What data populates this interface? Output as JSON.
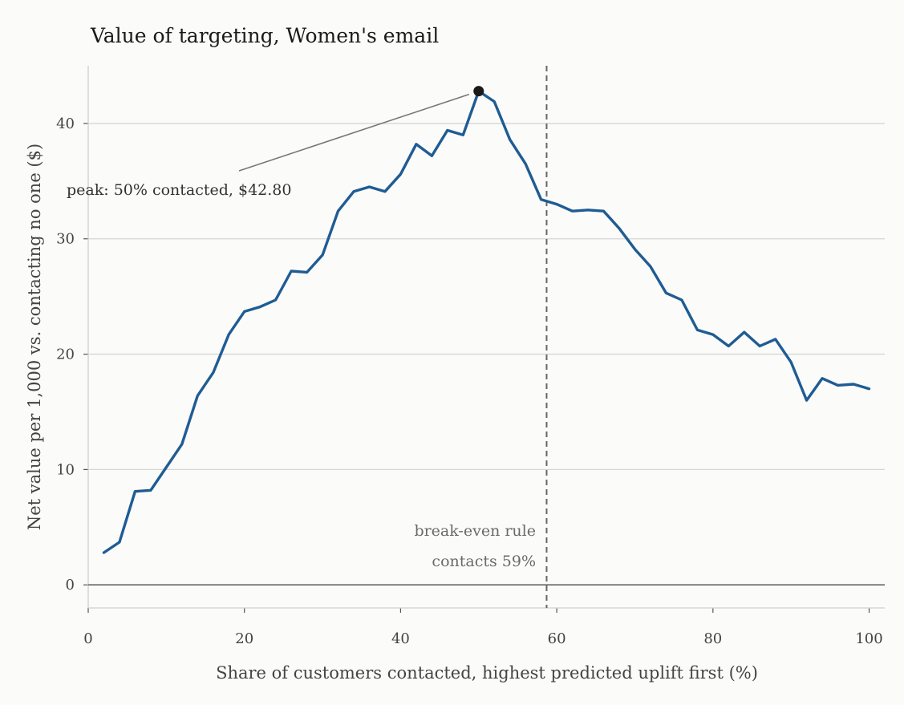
{
  "chart_data": {
    "type": "line",
    "title": "Value of targeting, Women's email",
    "xlabel": "Share of customers contacted, highest predicted uplift first (%)",
    "ylabel": "Net value per 1,000 vs. contacting no one ($)",
    "xlim": [
      0,
      102
    ],
    "ylim": [
      -2,
      45
    ],
    "xticks": [
      0,
      20,
      40,
      60,
      80,
      100
    ],
    "yticks": [
      0,
      10,
      20,
      30,
      40
    ],
    "grid": "horizontal",
    "colors": {
      "line": "#1f5c94",
      "peak": "#1a1a1a",
      "reference": "#666666"
    },
    "series": [
      {
        "x": [
          2,
          4,
          6,
          8,
          10,
          12,
          14,
          16,
          18,
          20,
          22,
          24,
          26,
          28,
          30,
          32,
          34,
          36,
          38,
          40,
          42,
          44,
          46,
          48,
          50,
          52,
          54,
          56,
          58,
          60,
          62,
          64,
          66,
          68,
          70,
          72,
          74,
          76,
          78,
          80,
          82,
          84,
          86,
          88,
          90,
          92,
          94,
          96,
          98,
          100
        ],
        "y": [
          2.8,
          3.7,
          8.1,
          8.2,
          10.2,
          12.2,
          16.4,
          18.4,
          21.7,
          23.7,
          24.1,
          24.7,
          27.2,
          27.1,
          28.6,
          32.4,
          34.1,
          34.5,
          34.1,
          35.6,
          38.2,
          37.2,
          39.4,
          39.0,
          42.8,
          41.9,
          38.6,
          36.5,
          33.4,
          33.0,
          32.4,
          32.5,
          32.4,
          30.9,
          29.1,
          27.6,
          25.3,
          24.7,
          22.1,
          21.7,
          20.7,
          21.9,
          20.7,
          21.3,
          19.3,
          16.0,
          17.9,
          17.3,
          17.4,
          17.0
        ]
      }
    ],
    "peak": {
      "x": 50,
      "y": 42.8,
      "label": "peak: 50% contacted, $42.80"
    },
    "breakeven": {
      "x": 58.7,
      "label_line1": "break-even rule",
      "label_line2": "contacts 59%"
    }
  }
}
